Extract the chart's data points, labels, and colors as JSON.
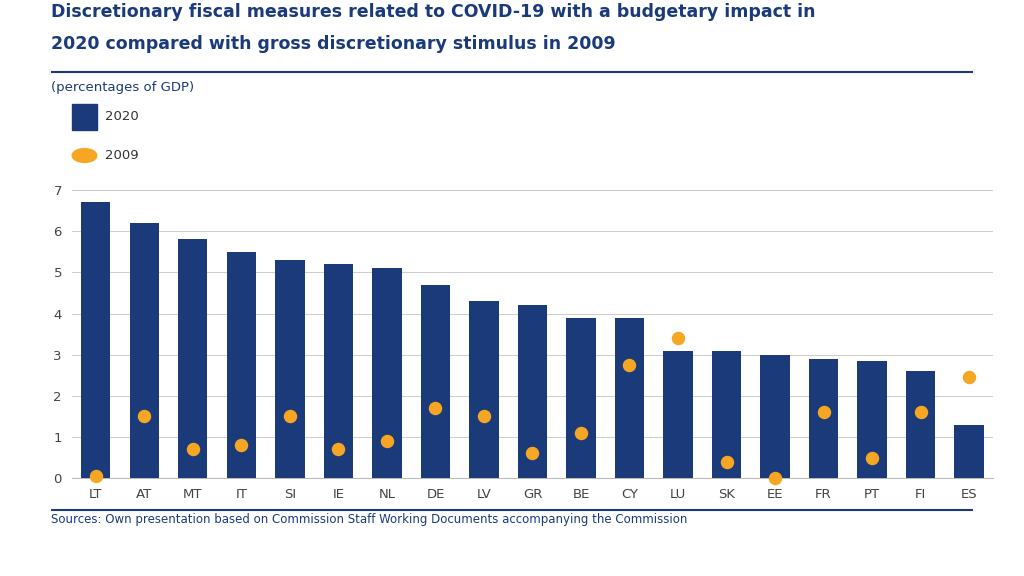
{
  "categories": [
    "LT",
    "AT",
    "MT",
    "IT",
    "SI",
    "IE",
    "NL",
    "DE",
    "LV",
    "GR",
    "BE",
    "CY",
    "LU",
    "SK",
    "EE",
    "FR",
    "PT",
    "FI",
    "ES"
  ],
  "values_2020": [
    6.7,
    6.2,
    5.8,
    5.5,
    5.3,
    5.2,
    5.1,
    4.7,
    4.3,
    4.2,
    3.9,
    3.9,
    3.1,
    3.1,
    3.0,
    2.9,
    2.85,
    2.6,
    1.3
  ],
  "values_2009": [
    0.05,
    1.5,
    0.7,
    0.8,
    1.5,
    0.7,
    0.9,
    1.7,
    1.5,
    0.6,
    1.1,
    2.75,
    3.4,
    0.4,
    0.0,
    1.6,
    0.5,
    1.6,
    2.45
  ],
  "bar_color": "#1a3a7a",
  "dot_color": "#f5a623",
  "title_line1": "Discretionary fiscal measures related to COVID-19 with a budgetary impact in",
  "title_line2": "2020 compared with gross discretionary stimulus in 2009",
  "subtitle": "(percentages of GDP)",
  "legend_2020": "2020",
  "legend_2009": "2009",
  "source_text": "Sources: Own presentation based on Commission Staff Working Documents accompanying the Commission",
  "ylim": [
    0,
    7
  ],
  "yticks": [
    0,
    1,
    2,
    3,
    4,
    5,
    6,
    7
  ],
  "background_color": "#ffffff",
  "title_color": "#1a3a7a",
  "subtitle_color": "#1a3a7a",
  "source_color": "#1a3a7a",
  "grid_color": "#cccccc",
  "bar_width": 0.6
}
